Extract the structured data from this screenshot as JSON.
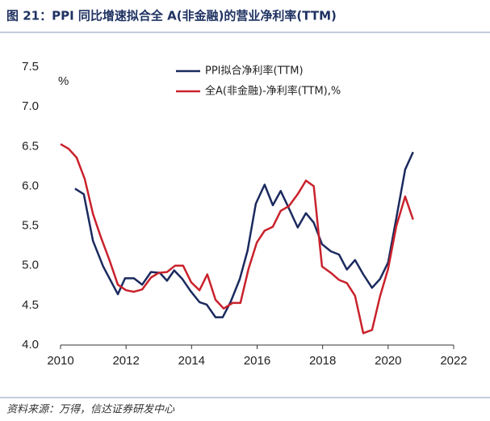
{
  "chart_data": {
    "type": "line",
    "title": "图 21：PPI 同比增速拟合全 A(非金融)的营业净利率(TTM)",
    "y_unit": "%",
    "source": "资料来源：万得，信达证券研发中心",
    "xlim": [
      2010,
      2022
    ],
    "xticks": [
      2010,
      2012,
      2014,
      2016,
      2018,
      2020,
      2022
    ],
    "ylim": [
      4.0,
      7.5
    ],
    "yticks": [
      {
        "value": 4,
        "label": "4.0"
      },
      4.5,
      {
        "value": 5,
        "label": "5.0"
      },
      5.5,
      {
        "value": 6,
        "label": "6.0"
      },
      6.5,
      {
        "value": 7,
        "label": "7.0"
      },
      7.5
    ],
    "grid": false,
    "legend": "upper center",
    "series": [
      {
        "name": "PPI拟合净利率(TTM)",
        "color": "#1b2a5e",
        "x": [
          2010.44,
          2010.71,
          2010.99,
          2011.3,
          2011.75,
          2011.97,
          2012.24,
          2012.49,
          2012.76,
          2013.03,
          2013.25,
          2013.47,
          2013.72,
          2013.97,
          2014.24,
          2014.46,
          2014.73,
          2014.95,
          2015.2,
          2015.47,
          2015.71,
          2015.96,
          2016.23,
          2016.48,
          2016.72,
          2016.97,
          2017.24,
          2017.49,
          2017.73,
          2017.98,
          2018.25,
          2018.5,
          2018.74,
          2018.99,
          2019.24,
          2019.51,
          2019.75,
          2020.0,
          2020.25,
          2020.52,
          2020.76
        ],
        "values": [
          5.97,
          5.9,
          5.31,
          4.99,
          4.64,
          4.84,
          4.84,
          4.76,
          4.92,
          4.91,
          4.81,
          4.94,
          4.83,
          4.68,
          4.54,
          4.51,
          4.35,
          4.35,
          4.55,
          4.83,
          5.19,
          5.78,
          6.02,
          5.76,
          5.94,
          5.72,
          5.48,
          5.66,
          5.54,
          5.27,
          5.18,
          5.14,
          4.95,
          5.07,
          4.89,
          4.72,
          4.83,
          5.04,
          5.6,
          6.21,
          6.43
        ]
      },
      {
        "name": "全A(非金融)-净利率(TTM),%",
        "color": "#c9222c",
        "x": [
          2010.0,
          2010.25,
          2010.49,
          2010.74,
          2010.99,
          2011.23,
          2011.5,
          2011.75,
          2012.0,
          2012.24,
          2012.49,
          2012.76,
          2013.0,
          2013.25,
          2013.5,
          2013.74,
          2013.99,
          2014.24,
          2014.48,
          2014.73,
          2014.98,
          2015.25,
          2015.49,
          2015.74,
          2015.99,
          2016.23,
          2016.48,
          2016.72,
          2016.97,
          2017.24,
          2017.49,
          2017.73,
          2017.98,
          2018.25,
          2018.5,
          2018.74,
          2018.99,
          2019.24,
          2019.51,
          2019.75,
          2020.0,
          2020.25,
          2020.52,
          2020.76
        ],
        "values": [
          6.53,
          6.47,
          6.36,
          6.09,
          5.65,
          5.36,
          5.06,
          4.76,
          4.69,
          4.67,
          4.7,
          4.85,
          4.91,
          4.92,
          5.0,
          5.0,
          4.79,
          4.69,
          4.89,
          4.57,
          4.46,
          4.53,
          4.53,
          4.96,
          5.29,
          5.44,
          5.49,
          5.69,
          5.75,
          5.9,
          6.07,
          6.0,
          4.99,
          4.91,
          4.82,
          4.78,
          4.62,
          4.15,
          4.19,
          4.61,
          4.96,
          5.5,
          5.87,
          5.58
        ]
      }
    ]
  }
}
